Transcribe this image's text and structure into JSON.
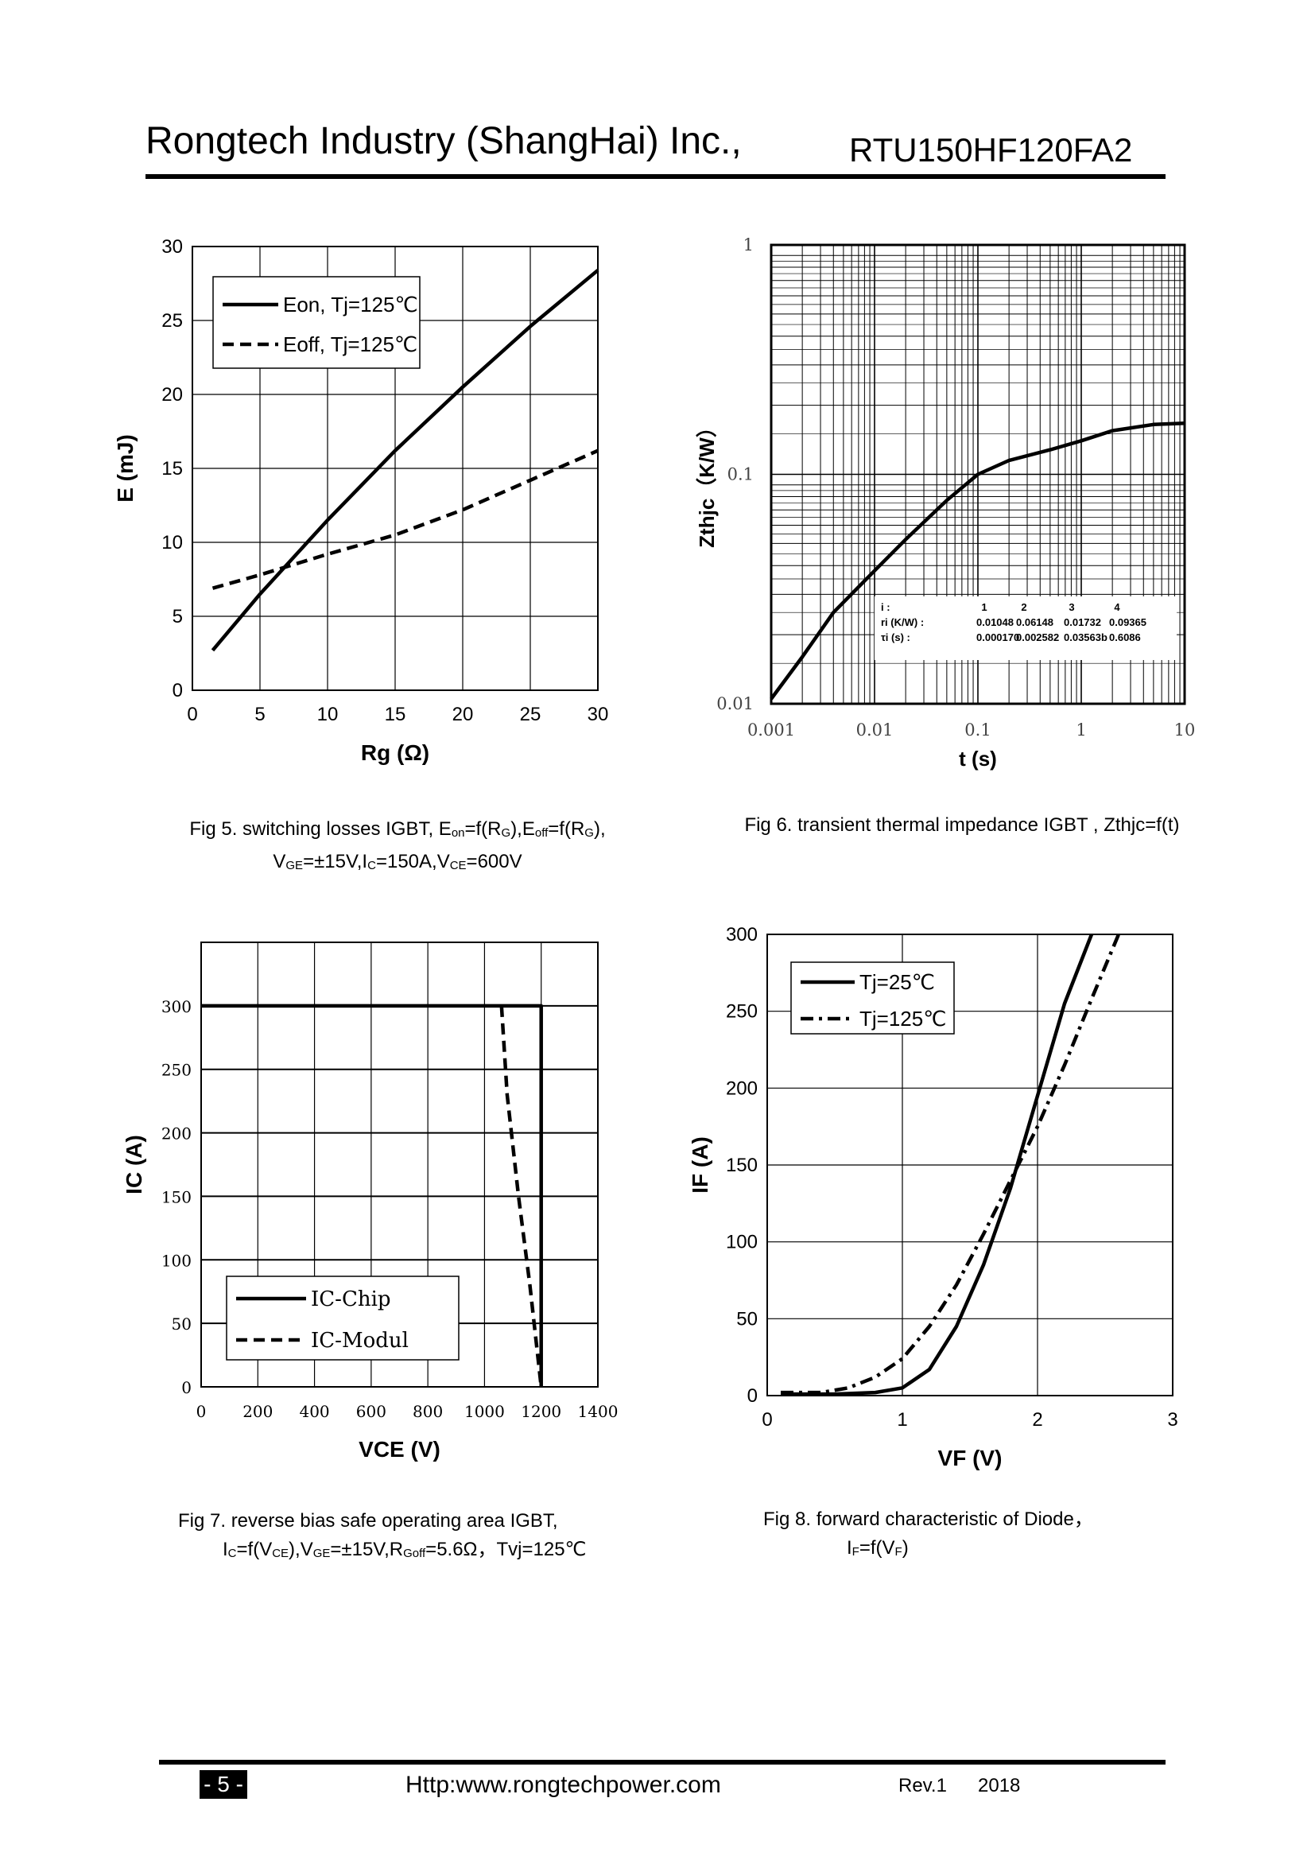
{
  "header": {
    "company": "Rongtech Industry (ShangHai) Inc.,",
    "part_number": "RTU150HF120FA2"
  },
  "footer": {
    "page": "- 5 -",
    "url": "Http:www.rongtechpower.com",
    "rev": "Rev.1",
    "year": "2018"
  },
  "captions": {
    "fig5": {
      "l1": {
        "a": "Fig 5. switching losses IGBT, E",
        "s1": "on",
        "b": "=f(R",
        "s2": "G",
        "c": "),E",
        "s3": "off",
        "d": "=f(R",
        "s4": "G",
        "e": "),"
      },
      "l2": {
        "a": "V",
        "s1": "GE",
        "b": "=±15V,I",
        "s2": "C",
        "c": "=150A,V",
        "s3": "CE",
        "d": "=600V"
      }
    },
    "fig6": {
      "l1": "Fig 6. transient thermal impedance IGBT , Zthjc=f(t)"
    },
    "fig7": {
      "l1": "Fig 7. reverse bias safe operating area IGBT,",
      "l2": {
        "a": "I",
        "s1": "C",
        "b": "=f(V",
        "s2": "CE",
        "c": "),V",
        "s3": "GE",
        "d": "=±15V,R",
        "s4": "Goff",
        "e": "=5.6Ω，Tvj=125℃"
      }
    },
    "fig8": {
      "l1": "Fig 8. forward characteristic of  Diode，",
      "l2": {
        "a": "I",
        "s1": "F",
        "b": "=f(V",
        "s2": "F",
        "c": ")"
      }
    }
  },
  "chart_data": [
    {
      "id": "fig5",
      "type": "line",
      "xlabel": "Rg (Ω)",
      "ylabel": "E (mJ)",
      "xlim": [
        0,
        30
      ],
      "ylim": [
        0,
        30
      ],
      "xticks": [
        0,
        5,
        10,
        15,
        20,
        25,
        30
      ],
      "yticks": [
        0,
        5,
        10,
        15,
        20,
        25,
        30
      ],
      "grid": true,
      "legend_position": "top-left",
      "series": [
        {
          "name": "Eon, Tj=125℃",
          "style": "solid",
          "x": [
            1.5,
            5,
            10,
            15,
            20,
            25,
            30
          ],
          "y": [
            2.7,
            6.5,
            11.5,
            16.2,
            20.5,
            24.6,
            28.4
          ]
        },
        {
          "name": "Eoff, Tj=125℃",
          "style": "dashed",
          "x": [
            1.5,
            5,
            10,
            15,
            20,
            25,
            30
          ],
          "y": [
            6.9,
            7.8,
            9.2,
            10.5,
            12.2,
            14.2,
            16.2
          ]
        }
      ]
    },
    {
      "id": "fig6",
      "type": "line",
      "xlabel": "t (s)",
      "ylabel": "Zthjc（K/W）",
      "xscale": "log",
      "yscale": "log",
      "xlim": [
        0.001,
        10
      ],
      "ylim": [
        0.01,
        1
      ],
      "xticks": [
        "0.001",
        "0.01",
        "0.1",
        "1",
        "10"
      ],
      "yticks": [
        "0.01",
        "0.1",
        "1"
      ],
      "grid": true,
      "series": [
        {
          "name": "Zthjc",
          "style": "solid",
          "x": [
            0.001,
            0.002,
            0.004,
            0.01,
            0.02,
            0.05,
            0.1,
            0.2,
            0.5,
            1,
            2,
            5,
            10
          ],
          "y": [
            0.0105,
            0.016,
            0.025,
            0.038,
            0.052,
            0.077,
            0.1,
            0.115,
            0.128,
            0.14,
            0.155,
            0.165,
            0.167
          ]
        }
      ],
      "table": {
        "header": [
          "i :",
          "1",
          "2",
          "3",
          "4"
        ],
        "rows": [
          [
            "ri (K/W) :",
            "0.01048",
            "0.06148",
            "0.01732",
            "0.09365"
          ],
          [
            "τi (s) :",
            "0.000170",
            "0.002582",
            "0.03563b",
            "0.6086"
          ]
        ]
      }
    },
    {
      "id": "fig7",
      "type": "line",
      "xlabel": "VCE (V)",
      "ylabel": "IC (A)",
      "xlim": [
        0,
        1400
      ],
      "ylim": [
        0,
        350
      ],
      "xticks": [
        0,
        200,
        400,
        600,
        800,
        1000,
        1200,
        1400
      ],
      "yticks": [
        0,
        50,
        100,
        150,
        200,
        250,
        300
      ],
      "grid": true,
      "legend_position": "bottom-left",
      "series": [
        {
          "name": "IC-Chip",
          "style": "solid",
          "x": [
            0,
            1200,
            1200
          ],
          "y": [
            300,
            300,
            0
          ]
        },
        {
          "name": "IC-Modul",
          "style": "dashed",
          "x": [
            1060,
            1080,
            1120,
            1160,
            1200
          ],
          "y": [
            300,
            230,
            150,
            80,
            0
          ]
        }
      ]
    },
    {
      "id": "fig8",
      "type": "line",
      "xlabel": "VF (V)",
      "ylabel": "IF (A)",
      "xlim": [
        0,
        3
      ],
      "ylim": [
        0,
        300
      ],
      "xticks": [
        0,
        1,
        2,
        3
      ],
      "yticks": [
        0,
        50,
        100,
        150,
        200,
        250,
        300
      ],
      "grid": true,
      "legend_position": "top-left",
      "series": [
        {
          "name": "Tj=25℃",
          "style": "solid",
          "x": [
            0.1,
            0.5,
            0.8,
            1.0,
            1.2,
            1.4,
            1.6,
            1.8,
            2.0,
            2.2,
            2.4
          ],
          "y": [
            1,
            1,
            2,
            5,
            17,
            45,
            85,
            135,
            195,
            255,
            300
          ]
        },
        {
          "name": "Tj=125℃",
          "style": "dash-dot",
          "x": [
            0.1,
            0.4,
            0.6,
            0.8,
            1.0,
            1.2,
            1.4,
            1.6,
            1.8,
            2.0,
            2.2,
            2.4,
            2.6
          ],
          "y": [
            2,
            2,
            5,
            12,
            24,
            45,
            72,
            105,
            140,
            175,
            215,
            258,
            300
          ]
        }
      ]
    }
  ]
}
